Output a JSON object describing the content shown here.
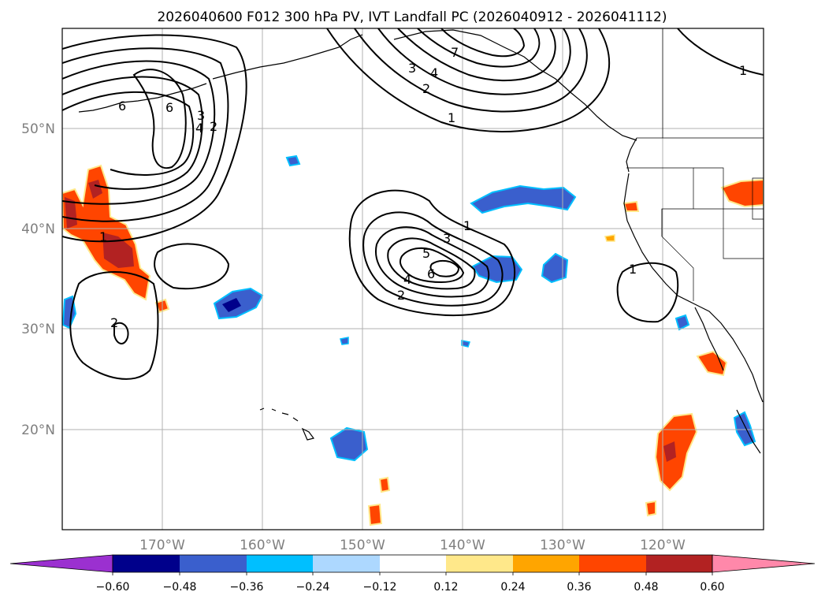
{
  "title": "2026040600 F012 300 hPa PV, IVT Landfall PC (2026040912 - 2026041112)",
  "lat_labels": [
    "50°N",
    "40°N",
    "30°N",
    "20°N"
  ],
  "lon_labels": [
    "170°W",
    "160°W",
    "150°W",
    "140°W",
    "130°W",
    "120°W"
  ],
  "colorbar": {
    "ticks": [
      "−0.60",
      "−0.48",
      "−0.36",
      "−0.24",
      "−0.12",
      "0.12",
      "0.24",
      "0.36",
      "0.48",
      "0.60"
    ],
    "colors": [
      "#9b30d0",
      "#00008b",
      "#3a5fcd",
      "#00bfff",
      "#add8ff",
      "#ffffff",
      "#ffe88a",
      "#ffa500",
      "#ff4500",
      "#b22222",
      "#ff88aa"
    ]
  },
  "contour_labels": {
    "west": [
      "6",
      "6",
      "3",
      "4",
      "2",
      "2",
      "1"
    ],
    "center": [
      "1",
      "3",
      "5",
      "6",
      "4",
      "2"
    ],
    "north": [
      "7",
      "4",
      "3",
      "2",
      "1"
    ],
    "east": [
      "1",
      "1"
    ]
  },
  "colors": {
    "grid": "#b0b0b0",
    "coast": "#000000"
  }
}
